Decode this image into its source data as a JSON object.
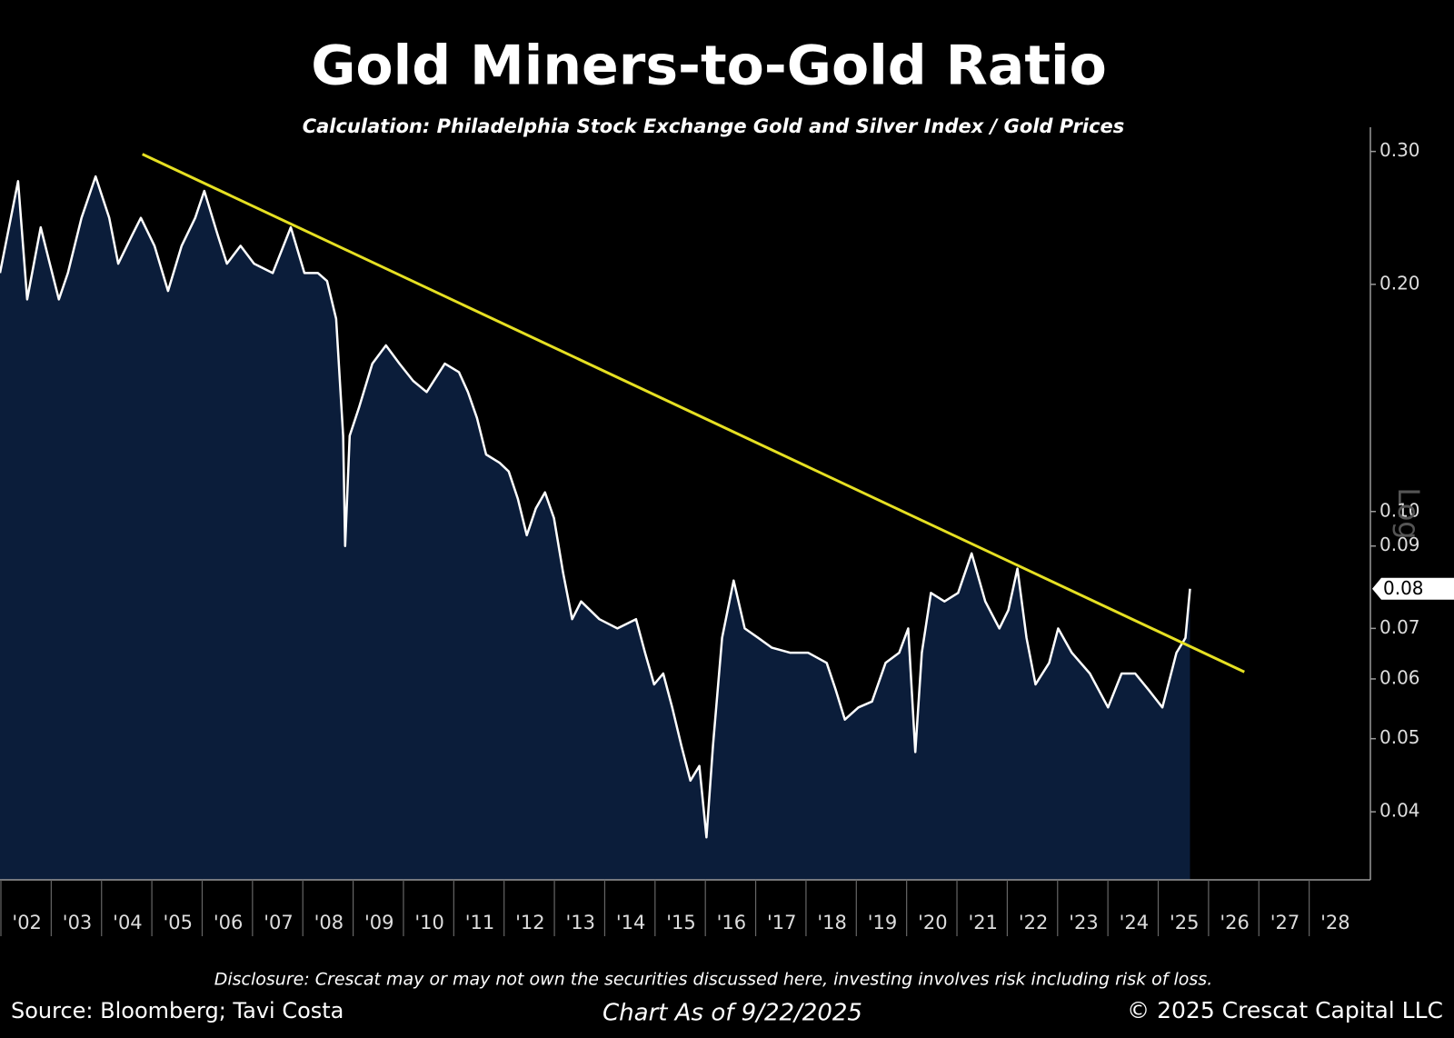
{
  "chart_data": {
    "type": "area",
    "title": "Gold Miners-to-Gold Ratio",
    "subtitle": "Calculation: Philadelphia Stock Exchange Gold and Silver Index / Gold Prices",
    "x": [
      2002.0,
      2002.36,
      2002.54,
      2002.81,
      2002.99,
      2003.17,
      2003.35,
      2003.62,
      2003.9,
      2004.17,
      2004.35,
      2004.62,
      2004.8,
      2005.07,
      2005.34,
      2005.61,
      2005.88,
      2006.06,
      2006.33,
      2006.51,
      2006.78,
      2007.05,
      2007.42,
      2007.78,
      2008.05,
      2008.32,
      2008.5,
      2008.68,
      2008.82,
      2008.86,
      2008.95,
      2009.13,
      2009.4,
      2009.67,
      2009.94,
      2010.21,
      2010.48,
      2010.84,
      2011.12,
      2011.3,
      2011.48,
      2011.66,
      2011.93,
      2012.11,
      2012.29,
      2012.47,
      2012.65,
      2012.83,
      2013.01,
      2013.19,
      2013.37,
      2013.55,
      2013.91,
      2014.27,
      2014.64,
      2014.82,
      2015.0,
      2015.18,
      2015.36,
      2015.54,
      2015.72,
      2015.9,
      2016.04,
      2016.17,
      2016.35,
      2016.58,
      2016.8,
      2017.07,
      2017.34,
      2017.7,
      2018.06,
      2018.43,
      2018.61,
      2018.79,
      2019.06,
      2019.33,
      2019.6,
      2019.87,
      2020.05,
      2020.19,
      2020.32,
      2020.5,
      2020.77,
      2021.04,
      2021.31,
      2021.58,
      2021.86,
      2022.04,
      2022.22,
      2022.4,
      2022.58,
      2022.85,
      2023.03,
      2023.3,
      2023.66,
      2024.02,
      2024.29,
      2024.56,
      2024.83,
      2025.1,
      2025.38,
      2025.56,
      2025.65
    ],
    "values": [
      0.207,
      0.274,
      0.191,
      0.238,
      0.213,
      0.191,
      0.207,
      0.245,
      0.278,
      0.245,
      0.213,
      0.232,
      0.245,
      0.225,
      0.196,
      0.225,
      0.245,
      0.266,
      0.232,
      0.213,
      0.225,
      0.213,
      0.207,
      0.238,
      0.207,
      0.207,
      0.202,
      0.18,
      0.126,
      0.09,
      0.126,
      0.137,
      0.157,
      0.166,
      0.157,
      0.149,
      0.144,
      0.157,
      0.153,
      0.144,
      0.133,
      0.119,
      0.116,
      0.113,
      0.104,
      0.093,
      0.101,
      0.106,
      0.098,
      0.083,
      0.072,
      0.076,
      0.072,
      0.07,
      0.072,
      0.065,
      0.059,
      0.061,
      0.055,
      0.049,
      0.044,
      0.046,
      0.037,
      0.049,
      0.068,
      0.081,
      0.07,
      0.068,
      0.066,
      0.065,
      0.065,
      0.063,
      0.058,
      0.053,
      0.055,
      0.056,
      0.063,
      0.065,
      0.07,
      0.048,
      0.065,
      0.078,
      0.076,
      0.078,
      0.088,
      0.076,
      0.07,
      0.074,
      0.084,
      0.068,
      0.059,
      0.063,
      0.07,
      0.065,
      0.061,
      0.055,
      0.061,
      0.061,
      0.058,
      0.055,
      0.065,
      0.068,
      0.079
    ],
    "color": "#ffffff",
    "fill_color": "#0b1d3a",
    "last_value_label": "0.08",
    "trendline": {
      "x": [
        2004.83,
        2026.73
      ],
      "values": [
        0.2975,
        0.0613
      ],
      "color": "#e6e022"
    },
    "yscale": "log",
    "y_axis_label": "Log",
    "xlim": [
      2002,
      2029
    ],
    "xticks": [
      {
        "value": 2002,
        "label": "'02"
      },
      {
        "value": 2003,
        "label": "'03"
      },
      {
        "value": 2004,
        "label": "'04"
      },
      {
        "value": 2005,
        "label": "'05"
      },
      {
        "value": 2006,
        "label": "'06"
      },
      {
        "value": 2007,
        "label": "'07"
      },
      {
        "value": 2008,
        "label": "'08"
      },
      {
        "value": 2009,
        "label": "'09"
      },
      {
        "value": 2010,
        "label": "'10"
      },
      {
        "value": 2011,
        "label": "'11"
      },
      {
        "value": 2012,
        "label": "'12"
      },
      {
        "value": 2013,
        "label": "'13"
      },
      {
        "value": 2014,
        "label": "'14"
      },
      {
        "value": 2015,
        "label": "'15"
      },
      {
        "value": 2016,
        "label": "'16"
      },
      {
        "value": 2017,
        "label": "'17"
      },
      {
        "value": 2018,
        "label": "'18"
      },
      {
        "value": 2019,
        "label": "'19"
      },
      {
        "value": 2020,
        "label": "'20"
      },
      {
        "value": 2021,
        "label": "'21"
      },
      {
        "value": 2022,
        "label": "'22"
      },
      {
        "value": 2023,
        "label": "'23"
      },
      {
        "value": 2024,
        "label": "'24"
      },
      {
        "value": 2025,
        "label": "'25"
      },
      {
        "value": 2026,
        "label": "'26"
      },
      {
        "value": 2027,
        "label": "'27"
      },
      {
        "value": 2028,
        "label": "'28"
      }
    ],
    "ylim": [
      0.0325,
      0.323
    ],
    "yticks": [
      0.04,
      0.05,
      0.06,
      0.07,
      0.09,
      {
        "value": 0.1,
        "label": "0.10"
      },
      {
        "value": 0.2,
        "label": "0.20"
      },
      {
        "value": 0.3,
        "label": "0.30"
      }
    ],
    "disclosure": "Disclosure: Crescat may or may not own the securities discussed here, investing involves risk including risk of loss.",
    "source": "Source: Bloomberg; Tavi Costa",
    "chart_date": "Chart As of 9/22/2025",
    "copyright": "© 2025 Crescat Capital LLC"
  }
}
